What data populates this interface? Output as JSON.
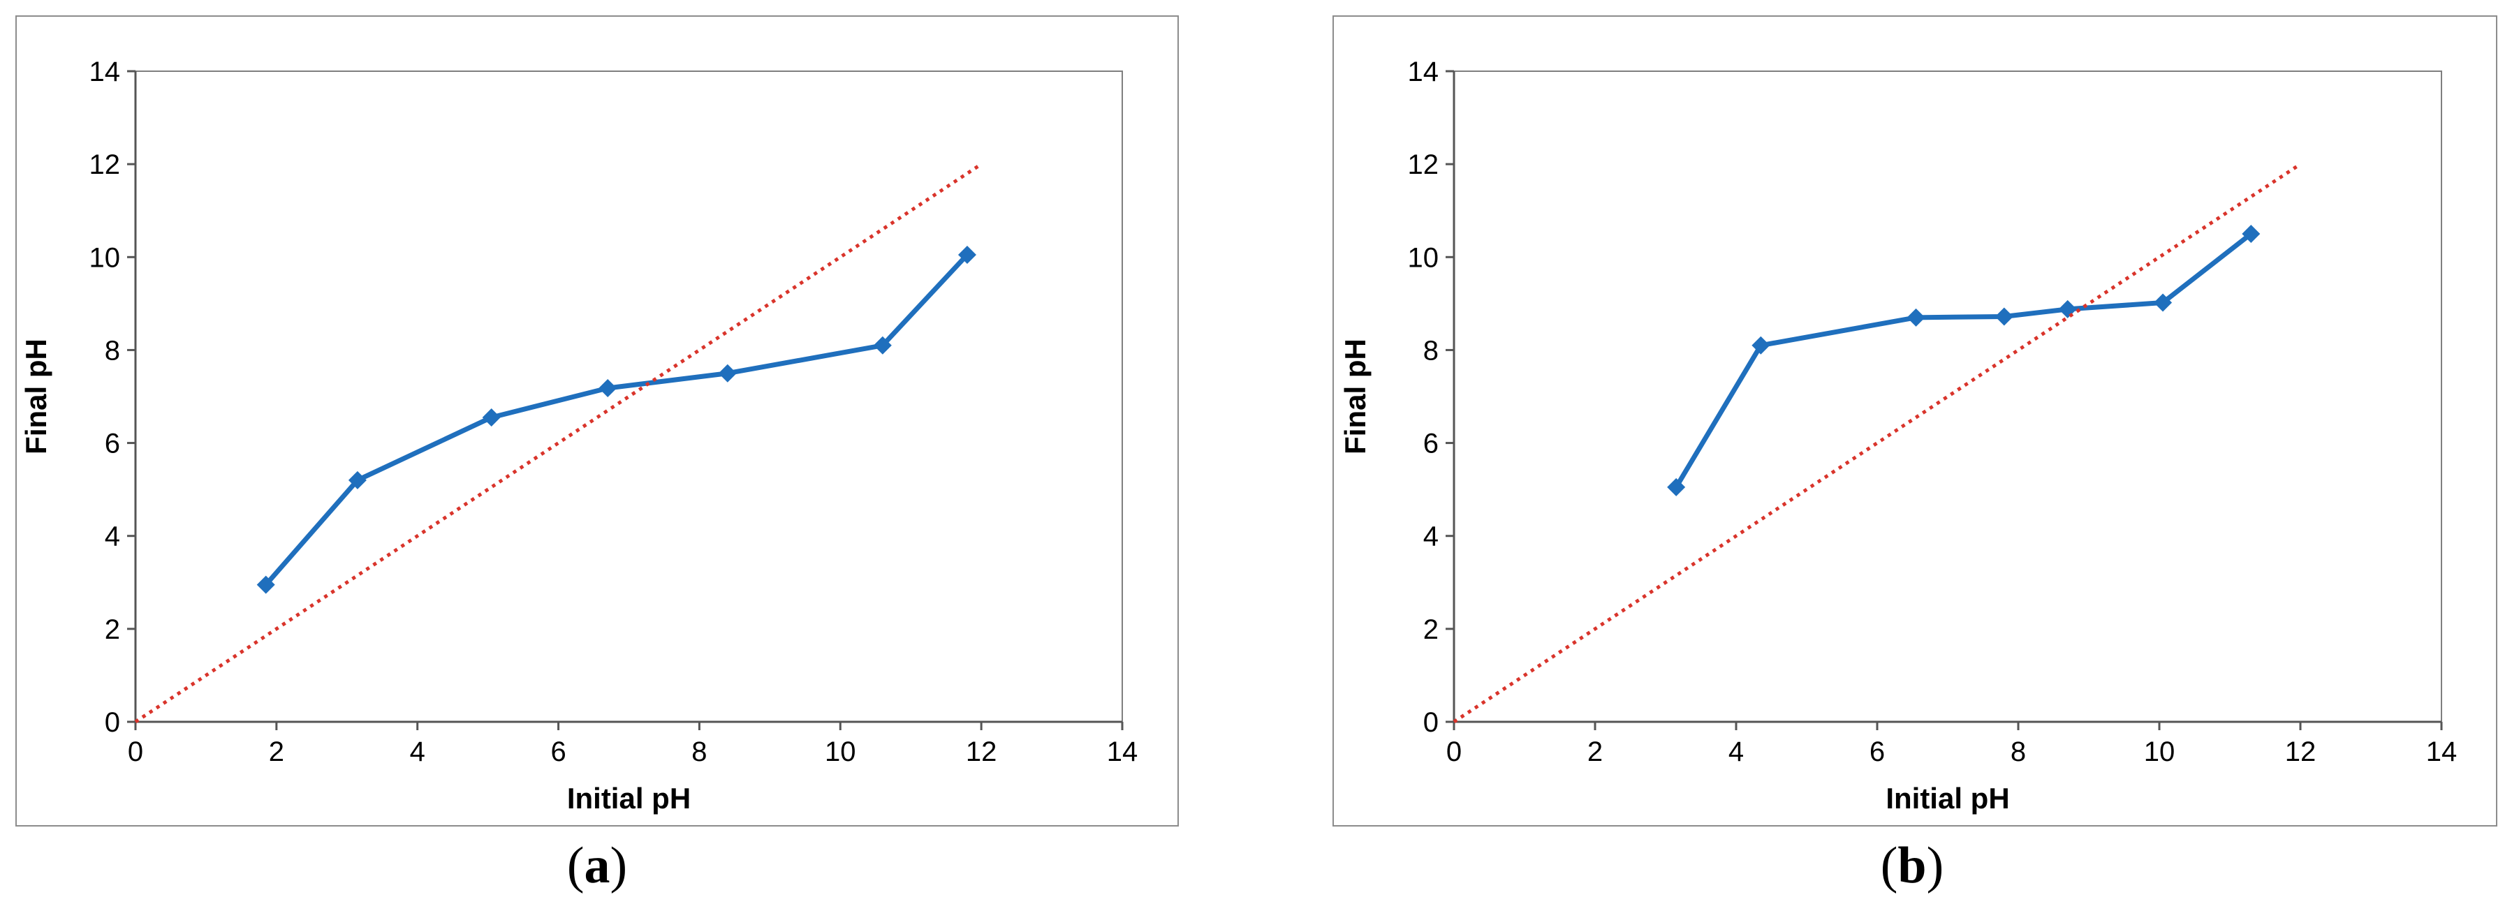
{
  "colors": {
    "series": "#1f6fbd",
    "reference": "#d9342b",
    "axis": "#7f7f7f",
    "panel_border": "#8c8c8c"
  },
  "chart_data": [
    {
      "panel_label": "a",
      "type": "line",
      "xlabel": "Initial pH",
      "ylabel": "Final pH",
      "xlim": [
        0,
        14
      ],
      "ylim": [
        0,
        14
      ],
      "xticks": [
        "0",
        "2",
        "4",
        "6",
        "8",
        "10",
        "12",
        "14"
      ],
      "yticks": [
        "0",
        "2",
        "4",
        "6",
        "8",
        "10",
        "12",
        "14"
      ],
      "grid": false,
      "legend": "none",
      "series": [
        {
          "marker": "diamond",
          "style": "solid",
          "x": [
            1.85,
            3.15,
            5.05,
            6.7,
            8.4,
            10.6,
            11.8
          ],
          "y": [
            2.95,
            5.2,
            6.55,
            7.18,
            7.5,
            8.1,
            10.05
          ]
        },
        {
          "marker": "none",
          "style": "dotted",
          "x": [
            0,
            12
          ],
          "y": [
            0,
            12
          ]
        }
      ]
    },
    {
      "panel_label": "b",
      "type": "line",
      "xlabel": "Initial pH",
      "ylabel": "Final pH",
      "xlim": [
        0,
        14
      ],
      "ylim": [
        0,
        14
      ],
      "xticks": [
        "0",
        "2",
        "4",
        "6",
        "8",
        "10",
        "12",
        "14"
      ],
      "yticks": [
        "0",
        "2",
        "4",
        "6",
        "8",
        "10",
        "12",
        "14"
      ],
      "grid": false,
      "legend": "none",
      "series": [
        {
          "marker": "diamond",
          "style": "solid",
          "x": [
            3.15,
            4.35,
            6.55,
            7.8,
            8.7,
            10.05,
            11.3
          ],
          "y": [
            5.05,
            8.1,
            8.7,
            8.72,
            8.88,
            9.02,
            10.5
          ]
        },
        {
          "marker": "none",
          "style": "dotted",
          "x": [
            0,
            12
          ],
          "y": [
            0,
            12
          ]
        }
      ]
    }
  ]
}
